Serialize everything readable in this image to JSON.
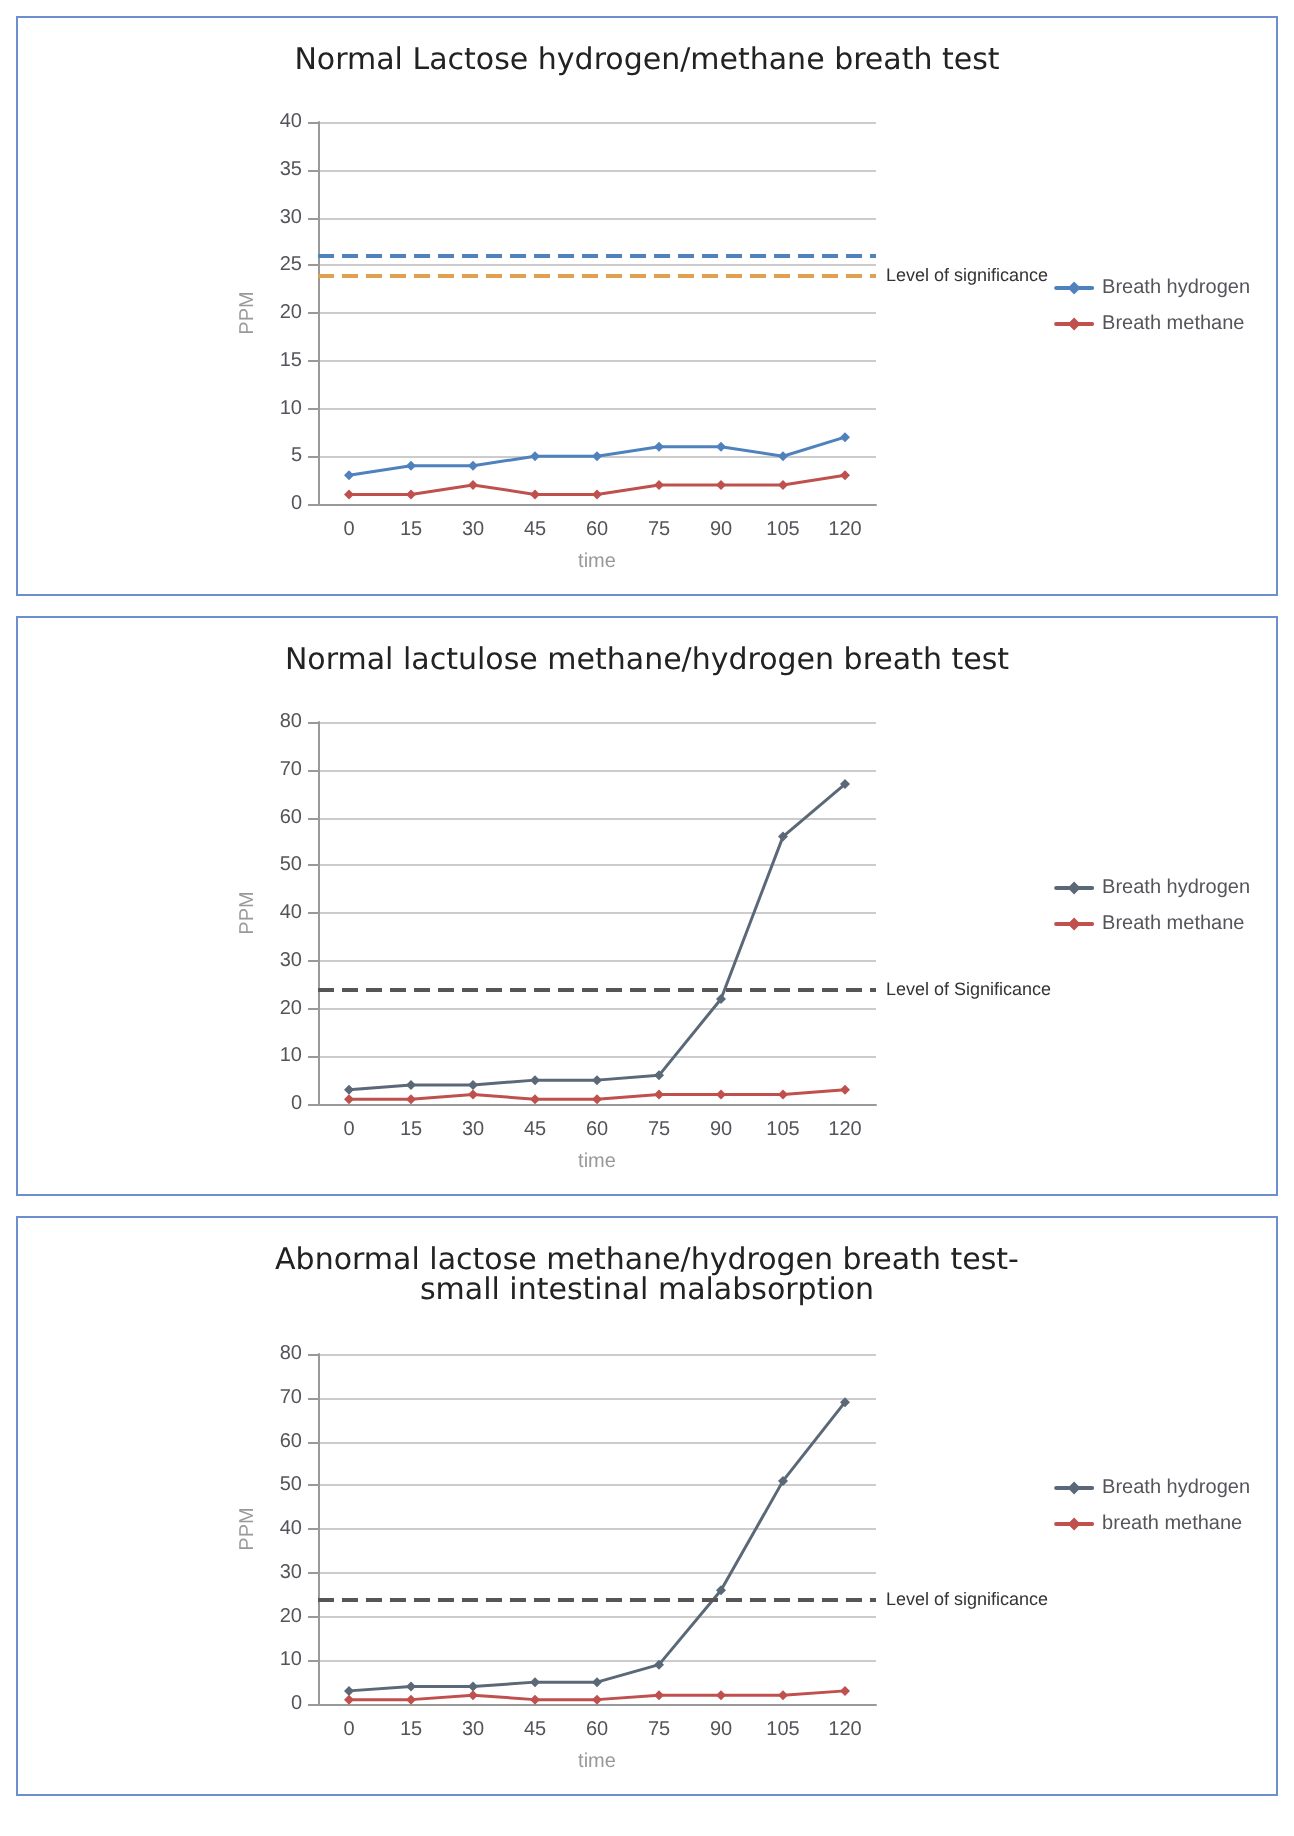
{
  "chart_data": [
    {
      "type": "line",
      "title": "Normal Lactose hydrogen/methane breath test",
      "xlabel": "time",
      "ylabel": "PPM",
      "categories": [
        "0",
        "15",
        "30",
        "45",
        "60",
        "75",
        "90",
        "105",
        "120"
      ],
      "series": [
        {
          "name": "Breath hydrogen",
          "color": "#4f81bd",
          "values": [
            3,
            4,
            4,
            5,
            5,
            6,
            6,
            5,
            7
          ]
        },
        {
          "name": "Breath methane",
          "color": "#c0504d",
          "values": [
            1,
            1,
            2,
            1,
            1,
            2,
            2,
            2,
            3
          ]
        }
      ],
      "ylim": [
        0,
        40
      ],
      "yticks": [
        0,
        5,
        10,
        15,
        20,
        25,
        30,
        35,
        40
      ],
      "grid": "y",
      "legend": "right",
      "marker": "diamond",
      "line_style": "solid",
      "ref_lines": [
        {
          "axis": "y",
          "value": 26,
          "label": null,
          "color": "#4f81bd",
          "line_style": "dashed"
        },
        {
          "axis": "y",
          "value": 24,
          "label": "Level of significance",
          "color": "#e0a050",
          "line_style": "dashed"
        }
      ]
    },
    {
      "type": "line",
      "title": "Normal lactulose methane/hydrogen breath test",
      "xlabel": "time",
      "ylabel": "PPM",
      "categories": [
        "0",
        "15",
        "30",
        "45",
        "60",
        "75",
        "90",
        "105",
        "120"
      ],
      "series": [
        {
          "name": "Breath hydrogen",
          "color": "#5a6878",
          "values": [
            3,
            4,
            4,
            5,
            5,
            6,
            22,
            56,
            67
          ]
        },
        {
          "name": "Breath methane",
          "color": "#c0504d",
          "values": [
            1,
            1,
            2,
            1,
            1,
            2,
            2,
            2,
            3
          ]
        }
      ],
      "ylim": [
        0,
        80
      ],
      "yticks": [
        0,
        10,
        20,
        30,
        40,
        50,
        60,
        70,
        80
      ],
      "grid": "y",
      "legend": "right",
      "marker": "diamond",
      "line_style": "solid",
      "ref_lines": [
        {
          "axis": "y",
          "value": 24,
          "label": "Level of Significance",
          "color": "#555555",
          "line_style": "dashed"
        }
      ]
    },
    {
      "type": "line",
      "title": "Abnormal lactose methane/hydrogen breath test-\nsmall intestinal malabsorption",
      "xlabel": "time",
      "ylabel": "PPM",
      "categories": [
        "0",
        "15",
        "30",
        "45",
        "60",
        "75",
        "90",
        "105",
        "120"
      ],
      "series": [
        {
          "name": "Breath hydrogen",
          "color": "#5a6878",
          "values": [
            3,
            4,
            4,
            5,
            5,
            9,
            26,
            51,
            69
          ]
        },
        {
          "name": "breath methane",
          "color": "#c0504d",
          "values": [
            1,
            1,
            2,
            1,
            1,
            2,
            2,
            2,
            3
          ]
        }
      ],
      "ylim": [
        0,
        80
      ],
      "yticks": [
        0,
        10,
        20,
        30,
        40,
        50,
        60,
        70,
        80
      ],
      "grid": "y",
      "legend": "right",
      "marker": "diamond",
      "line_style": "solid",
      "ref_lines": [
        {
          "axis": "y",
          "value": 24,
          "label": "Level of significance",
          "color": "#555555",
          "line_style": "dashed"
        }
      ]
    }
  ]
}
